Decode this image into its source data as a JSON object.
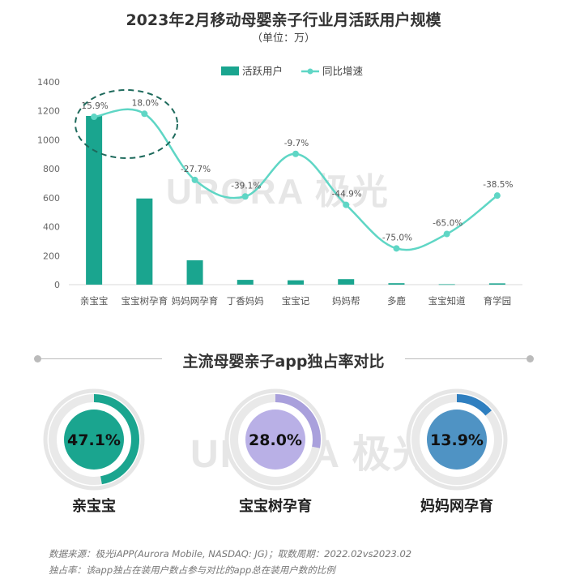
{
  "header": {
    "title": "2023年2月移动母婴亲子行业月活跃用户规模",
    "subtitle": "（单位：万）"
  },
  "watermark": {
    "text": "URORA 极光"
  },
  "chart_data": {
    "type": "bar",
    "categories": [
      "亲宝宝",
      "宝宝树孕育",
      "妈妈网孕育",
      "丁香妈妈",
      "宝宝记",
      "妈妈帮",
      "多鹿",
      "宝宝知道",
      "育学园"
    ],
    "ylim": [
      0,
      1400
    ],
    "yticks": [
      0,
      200,
      400,
      600,
      800,
      1000,
      1200,
      1400
    ],
    "legend_position": "top",
    "series": [
      {
        "name": "活跃用户",
        "type": "bar",
        "color": "#1aa58f",
        "values": [
          1165,
          595,
          168,
          33,
          30,
          38,
          10,
          3,
          9
        ]
      },
      {
        "name": "同比增速",
        "type": "line",
        "color": "#5fd6c5",
        "values": [
          15.9,
          18.0,
          -27.7,
          -39.1,
          -9.7,
          -44.9,
          -75.0,
          -65.0,
          -38.5
        ],
        "labels": [
          "15.9%",
          "18.0%",
          "-27.7%",
          "-39.1%",
          "-9.7%",
          "-44.9%",
          "-75.0%",
          "-65.0%",
          "-38.5%"
        ]
      }
    ]
  },
  "share": {
    "title": "主流母婴亲子app独占率对比",
    "items": [
      {
        "name": "亲宝宝",
        "value": 47.1,
        "label": "47.1%",
        "color": "#1aa58f",
        "inner": "#1aa58f"
      },
      {
        "name": "宝宝树孕育",
        "value": 28.0,
        "label": "28.0%",
        "color": "#a9a0dc",
        "inner": "#b9b0e6"
      },
      {
        "name": "妈妈网孕育",
        "value": 13.9,
        "label": "13.9%",
        "color": "#2f7fc0",
        "inner": "#4f93c4"
      }
    ]
  },
  "footnotes": {
    "source": "数据来源：极光iAPP(Aurora Mobile, NASDAQ: JG)；取数周期：2022.02vs2023.02",
    "definition": "独占率：该app独占在装用户数占参与对比的app总在装用户数的比例"
  }
}
